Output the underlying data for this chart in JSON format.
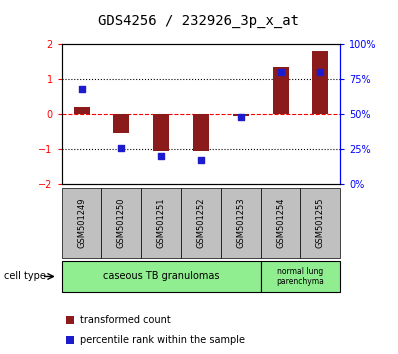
{
  "title": "GDS4256 / 232926_3p_x_at",
  "samples": [
    "GSM501249",
    "GSM501250",
    "GSM501251",
    "GSM501252",
    "GSM501253",
    "GSM501254",
    "GSM501255"
  ],
  "transformed_count": [
    0.2,
    -0.55,
    -1.05,
    -1.05,
    -0.05,
    1.35,
    1.8
  ],
  "percentile_rank": [
    68,
    26,
    20,
    17,
    48,
    80,
    80
  ],
  "ylim_left": [
    -2,
    2
  ],
  "ylim_right": [
    0,
    100
  ],
  "yticks_left": [
    -2,
    -1,
    0,
    1,
    2
  ],
  "yticks_right": [
    0,
    25,
    50,
    75,
    100
  ],
  "ytick_labels_right": [
    "0%",
    "25%",
    "50%",
    "75%",
    "100%"
  ],
  "bar_color": "#8B1A1A",
  "dot_color": "#1C1CCD",
  "bar_width": 0.4,
  "group1_samples": 5,
  "group1_label": "caseous TB granulomas",
  "group2_label": "normal lung\nparenchyma",
  "group_color": "#90EE90",
  "sample_box_color": "#C0C0C0",
  "cell_type_label": "cell type",
  "legend_label1": "transformed count",
  "legend_label2": "percentile rank within the sample",
  "axis_left_color": "red",
  "axis_right_color": "blue",
  "tick_label_fontsize": 7,
  "title_fontsize": 10,
  "sample_fontsize": 6,
  "celltype_fontsize": 7,
  "legend_fontsize": 7
}
